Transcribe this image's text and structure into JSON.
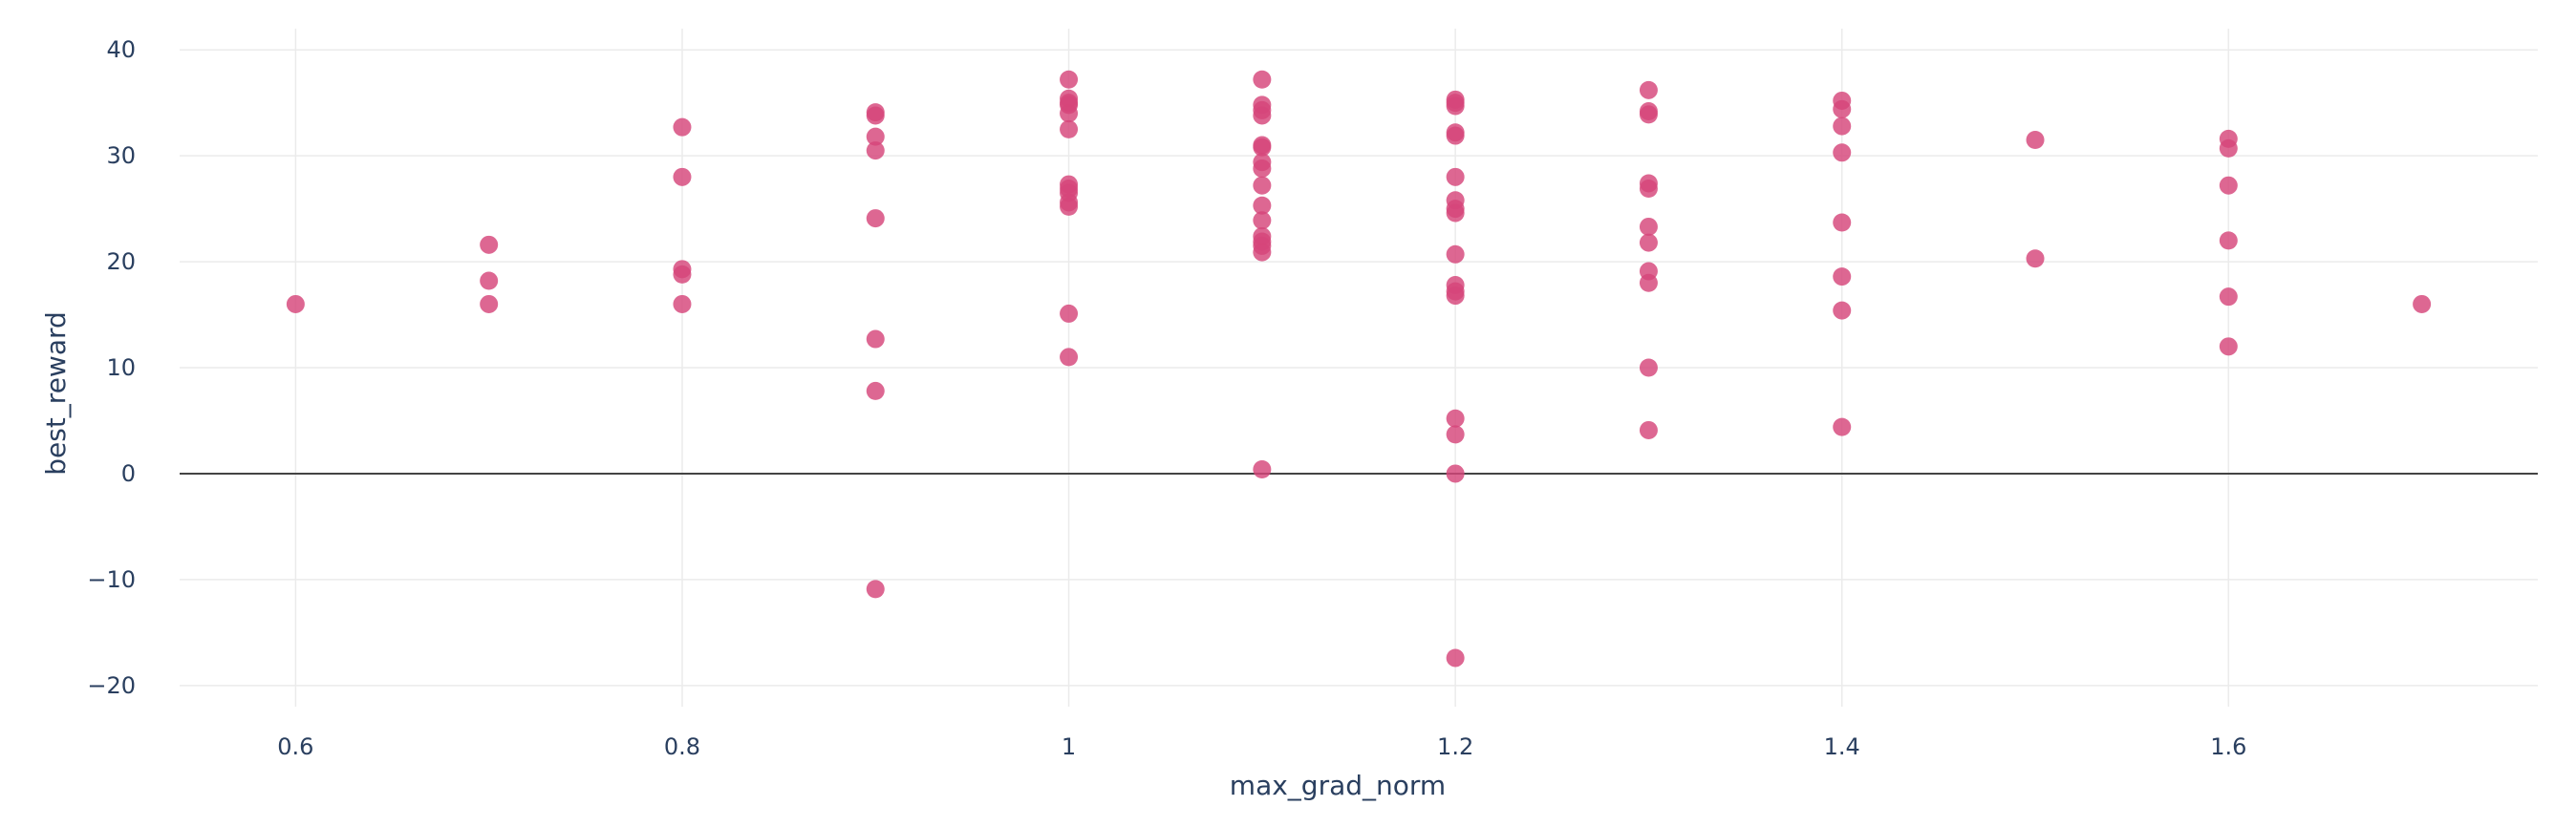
{
  "chart_data": {
    "type": "scatter",
    "title": "",
    "xlabel": "max_grad_norm",
    "ylabel": "best_reward",
    "xlim": [
      0.54,
      1.76
    ],
    "ylim": [
      -22,
      42
    ],
    "x_ticks": [
      0.6,
      0.8,
      1.0,
      1.2,
      1.4,
      1.6
    ],
    "x_tick_labels": [
      "0.6",
      "0.8",
      "1",
      "1.2",
      "1.4",
      "1.6"
    ],
    "y_ticks": [
      -20,
      -10,
      0,
      10,
      20,
      30,
      40
    ],
    "y_tick_labels": [
      "−20",
      "−10",
      "0",
      "10",
      "20",
      "30",
      "40"
    ],
    "grid": true,
    "zero_line": true,
    "marker_color": "#d6457a",
    "series": [
      {
        "points": [
          {
            "x": 0.6,
            "y": 16.0
          },
          {
            "x": 0.7,
            "y": 21.6
          },
          {
            "x": 0.7,
            "y": 18.2
          },
          {
            "x": 0.7,
            "y": 16.0
          },
          {
            "x": 0.8,
            "y": 32.7
          },
          {
            "x": 0.8,
            "y": 28.0
          },
          {
            "x": 0.8,
            "y": 19.3
          },
          {
            "x": 0.8,
            "y": 18.8
          },
          {
            "x": 0.8,
            "y": 16.0
          },
          {
            "x": 0.9,
            "y": 34.1
          },
          {
            "x": 0.9,
            "y": 33.8
          },
          {
            "x": 0.9,
            "y": 31.8
          },
          {
            "x": 0.9,
            "y": 30.5
          },
          {
            "x": 0.9,
            "y": 24.1
          },
          {
            "x": 0.9,
            "y": 12.7
          },
          {
            "x": 0.9,
            "y": 7.8
          },
          {
            "x": 0.9,
            "y": -10.9
          },
          {
            "x": 1.0,
            "y": 37.2
          },
          {
            "x": 1.0,
            "y": 35.4
          },
          {
            "x": 1.0,
            "y": 35.0
          },
          {
            "x": 1.0,
            "y": 34.8
          },
          {
            "x": 1.0,
            "y": 34.0
          },
          {
            "x": 1.0,
            "y": 32.5
          },
          {
            "x": 1.0,
            "y": 27.3
          },
          {
            "x": 1.0,
            "y": 26.9
          },
          {
            "x": 1.0,
            "y": 26.5
          },
          {
            "x": 1.0,
            "y": 25.6
          },
          {
            "x": 1.0,
            "y": 25.2
          },
          {
            "x": 1.0,
            "y": 15.1
          },
          {
            "x": 1.0,
            "y": 11.0
          },
          {
            "x": 1.1,
            "y": 37.2
          },
          {
            "x": 1.1,
            "y": 34.8
          },
          {
            "x": 1.1,
            "y": 34.3
          },
          {
            "x": 1.1,
            "y": 33.8
          },
          {
            "x": 1.1,
            "y": 31.0
          },
          {
            "x": 1.1,
            "y": 30.8
          },
          {
            "x": 1.1,
            "y": 29.4
          },
          {
            "x": 1.1,
            "y": 28.8
          },
          {
            "x": 1.1,
            "y": 27.2
          },
          {
            "x": 1.1,
            "y": 25.3
          },
          {
            "x": 1.1,
            "y": 23.9
          },
          {
            "x": 1.1,
            "y": 22.4
          },
          {
            "x": 1.1,
            "y": 21.9
          },
          {
            "x": 1.1,
            "y": 21.5
          },
          {
            "x": 1.1,
            "y": 20.9
          },
          {
            "x": 1.1,
            "y": 0.4
          },
          {
            "x": 1.2,
            "y": 35.3
          },
          {
            "x": 1.2,
            "y": 35.0
          },
          {
            "x": 1.2,
            "y": 34.7
          },
          {
            "x": 1.2,
            "y": 32.2
          },
          {
            "x": 1.2,
            "y": 31.9
          },
          {
            "x": 1.2,
            "y": 28.0
          },
          {
            "x": 1.2,
            "y": 25.8
          },
          {
            "x": 1.2,
            "y": 25.0
          },
          {
            "x": 1.2,
            "y": 24.6
          },
          {
            "x": 1.2,
            "y": 20.7
          },
          {
            "x": 1.2,
            "y": 17.8
          },
          {
            "x": 1.2,
            "y": 17.2
          },
          {
            "x": 1.2,
            "y": 16.8
          },
          {
            "x": 1.2,
            "y": 5.2
          },
          {
            "x": 1.2,
            "y": 3.7
          },
          {
            "x": 1.2,
            "y": 0.0
          },
          {
            "x": 1.2,
            "y": -17.4
          },
          {
            "x": 1.3,
            "y": 36.2
          },
          {
            "x": 1.3,
            "y": 34.2
          },
          {
            "x": 1.3,
            "y": 33.9
          },
          {
            "x": 1.3,
            "y": 27.4
          },
          {
            "x": 1.3,
            "y": 26.9
          },
          {
            "x": 1.3,
            "y": 23.3
          },
          {
            "x": 1.3,
            "y": 21.8
          },
          {
            "x": 1.3,
            "y": 19.1
          },
          {
            "x": 1.3,
            "y": 18.0
          },
          {
            "x": 1.3,
            "y": 10.0
          },
          {
            "x": 1.3,
            "y": 4.1
          },
          {
            "x": 1.4,
            "y": 35.2
          },
          {
            "x": 1.4,
            "y": 34.4
          },
          {
            "x": 1.4,
            "y": 32.8
          },
          {
            "x": 1.4,
            "y": 30.3
          },
          {
            "x": 1.4,
            "y": 23.7
          },
          {
            "x": 1.4,
            "y": 18.6
          },
          {
            "x": 1.4,
            "y": 15.4
          },
          {
            "x": 1.4,
            "y": 4.4
          },
          {
            "x": 1.5,
            "y": 31.5
          },
          {
            "x": 1.5,
            "y": 20.3
          },
          {
            "x": 1.6,
            "y": 31.6
          },
          {
            "x": 1.6,
            "y": 30.7
          },
          {
            "x": 1.6,
            "y": 27.2
          },
          {
            "x": 1.6,
            "y": 22.0
          },
          {
            "x": 1.6,
            "y": 16.7
          },
          {
            "x": 1.6,
            "y": 12.0
          },
          {
            "x": 1.7,
            "y": 16.0
          }
        ]
      }
    ]
  }
}
